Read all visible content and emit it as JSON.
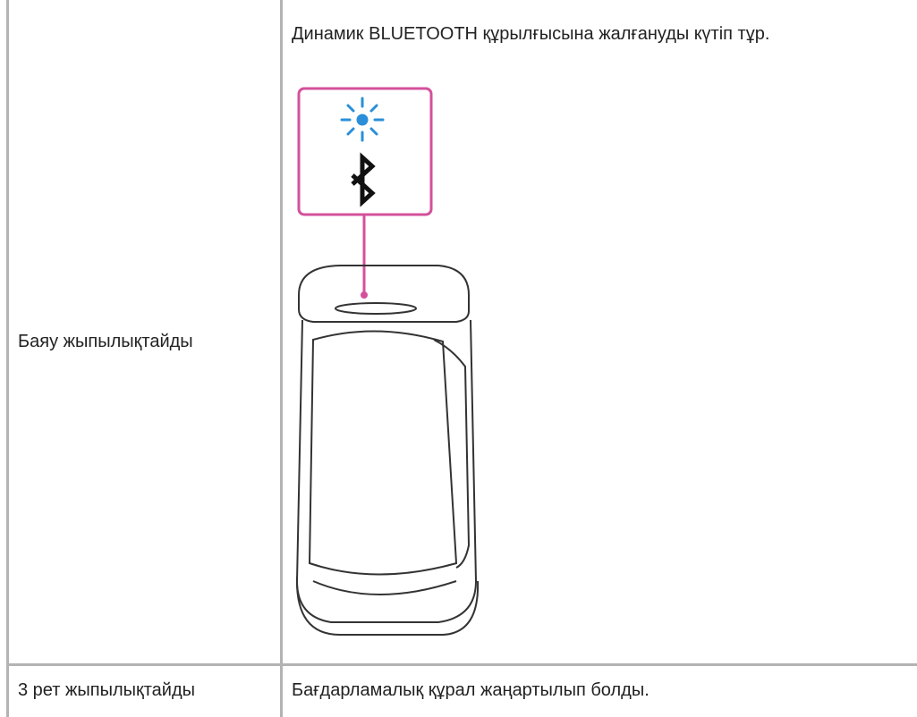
{
  "table": {
    "rows": [
      [
        "Баяу жыпылықтайды",
        "Динамик BLUETOOTH құрылғысына жалғануды күтіп тұр."
      ],
      [
        "3 рет жыпылықтайды",
        "Бағдарламалық құрал жаңартылып болды."
      ]
    ]
  }
}
